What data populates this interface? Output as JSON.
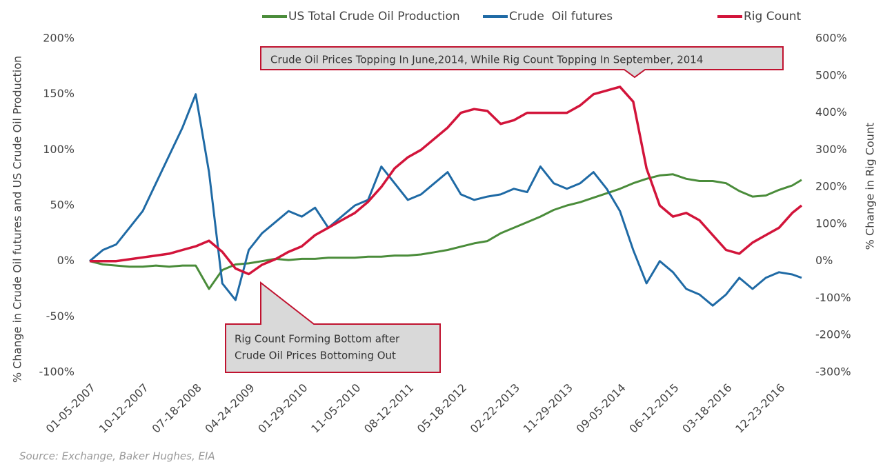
{
  "chart_data": {
    "type": "line",
    "x": [
      "01-05-2007",
      "03-16-2007",
      "05-25-2007",
      "08-03-2007",
      "10-12-2007",
      "12-21-2007",
      "02-29-2008",
      "05-09-2008",
      "07-18-2008",
      "09-26-2008",
      "12-05-2008",
      "02-13-2009",
      "04-24-2009",
      "07-03-2009",
      "09-11-2009",
      "11-20-2009",
      "01-29-2010",
      "04-09-2010",
      "06-18-2010",
      "08-27-2010",
      "11-05-2010",
      "01-14-2011",
      "03-25-2011",
      "06-03-2011",
      "08-12-2011",
      "10-21-2011",
      "12-30-2011",
      "03-09-2012",
      "05-18-2012",
      "07-27-2012",
      "10-05-2012",
      "12-14-2012",
      "02-22-2013",
      "05-03-2013",
      "07-12-2013",
      "09-20-2013",
      "11-29-2013",
      "02-07-2014",
      "04-18-2014",
      "06-27-2014",
      "09-05-2014",
      "11-14-2014",
      "01-23-2015",
      "04-03-2015",
      "06-12-2015",
      "08-21-2015",
      "10-30-2015",
      "01-08-2016",
      "03-18-2016",
      "05-27-2016",
      "08-05-2016",
      "10-14-2016",
      "12-23-2016",
      "03-03-2017",
      "04-21-2017"
    ],
    "series": [
      {
        "name": "US Total Crude Oil Production",
        "color": "#4a8c3a",
        "axis": "y",
        "values": [
          0,
          -3,
          -4,
          -5,
          -5,
          -4,
          -5,
          -4,
          -4,
          -25,
          -8,
          -3,
          -2,
          0,
          2,
          1,
          2,
          2,
          3,
          3,
          3,
          4,
          4,
          5,
          5,
          6,
          8,
          10,
          13,
          16,
          18,
          25,
          30,
          35,
          40,
          46,
          50,
          53,
          57,
          61,
          65,
          70,
          74,
          77,
          78,
          74,
          72,
          72,
          70,
          63,
          58,
          59,
          64,
          68,
          73
        ]
      },
      {
        "name": "Crude  Oil futures",
        "color": "#1f6aa5",
        "axis": "y",
        "values": [
          0,
          10,
          15,
          30,
          45,
          70,
          95,
          120,
          150,
          80,
          -20,
          -35,
          10,
          25,
          35,
          45,
          40,
          48,
          30,
          40,
          50,
          55,
          85,
          70,
          55,
          60,
          70,
          80,
          60,
          55,
          58,
          60,
          65,
          62,
          85,
          70,
          65,
          70,
          80,
          65,
          45,
          10,
          -20,
          0,
          -10,
          -25,
          -30,
          -40,
          -30,
          -15,
          -25,
          -15,
          -10,
          -12,
          -15
        ]
      },
      {
        "name": "Rig Count",
        "color": "#d2143a",
        "axis": "y2",
        "values": [
          0,
          0,
          0,
          5,
          10,
          15,
          20,
          30,
          40,
          55,
          25,
          -20,
          -35,
          -10,
          5,
          25,
          40,
          70,
          90,
          110,
          130,
          160,
          200,
          250,
          280,
          300,
          330,
          360,
          400,
          410,
          405,
          370,
          380,
          400,
          400,
          400,
          400,
          420,
          450,
          460,
          470,
          430,
          250,
          150,
          120,
          130,
          110,
          70,
          30,
          20,
          50,
          70,
          90,
          130,
          150
        ]
      }
    ],
    "xlim": [
      "01-05-2007",
      "04-21-2017"
    ],
    "xticks": [
      "01-05-2007",
      "10-12-2007",
      "07-18-2008",
      "04-24-2009",
      "01-29-2010",
      "11-05-2010",
      "08-12-2011",
      "05-18-2012",
      "02-22-2013",
      "11-29-2013",
      "09-05-2014",
      "06-12-2015",
      "03-18-2016",
      "12-23-2016"
    ],
    "ylim": [
      -100,
      200
    ],
    "yticks": [
      {
        "value": -100,
        "label": "-100%"
      },
      {
        "value": -50,
        "label": "-50%"
      },
      {
        "value": 0,
        "label": "0%"
      },
      {
        "value": 50,
        "label": "50%"
      },
      {
        "value": 100,
        "label": "100%"
      },
      {
        "value": 150,
        "label": "150%"
      },
      {
        "value": 200,
        "label": "200%"
      }
    ],
    "y2lim": [
      -300,
      600
    ],
    "y2ticks": [
      {
        "value": -300,
        "label": "-300%"
      },
      {
        "value": -200,
        "label": "-200%"
      },
      {
        "value": -100,
        "label": "-100%"
      },
      {
        "value": 0,
        "label": "0%"
      },
      {
        "value": 100,
        "label": "100%"
      },
      {
        "value": 200,
        "label": "200%"
      },
      {
        "value": 300,
        "label": "300%"
      },
      {
        "value": 400,
        "label": "400%"
      },
      {
        "value": 500,
        "label": "500%"
      },
      {
        "value": 600,
        "label": "600%"
      }
    ],
    "ylabel": "% Change in Crude Oil futures and US Crude Oil Production",
    "y2label": "% Change in Rig Count",
    "grid": false,
    "legend": "top",
    "annotations": [
      "Crude Oil Prices Topping In June,2014, While Rig Count Topping In September, 2014",
      "Rig Count Forming Bottom after",
      "Crude Oil Prices Bottoming Out"
    ],
    "source": "Source: Exchange, Baker Hughes, EIA"
  }
}
